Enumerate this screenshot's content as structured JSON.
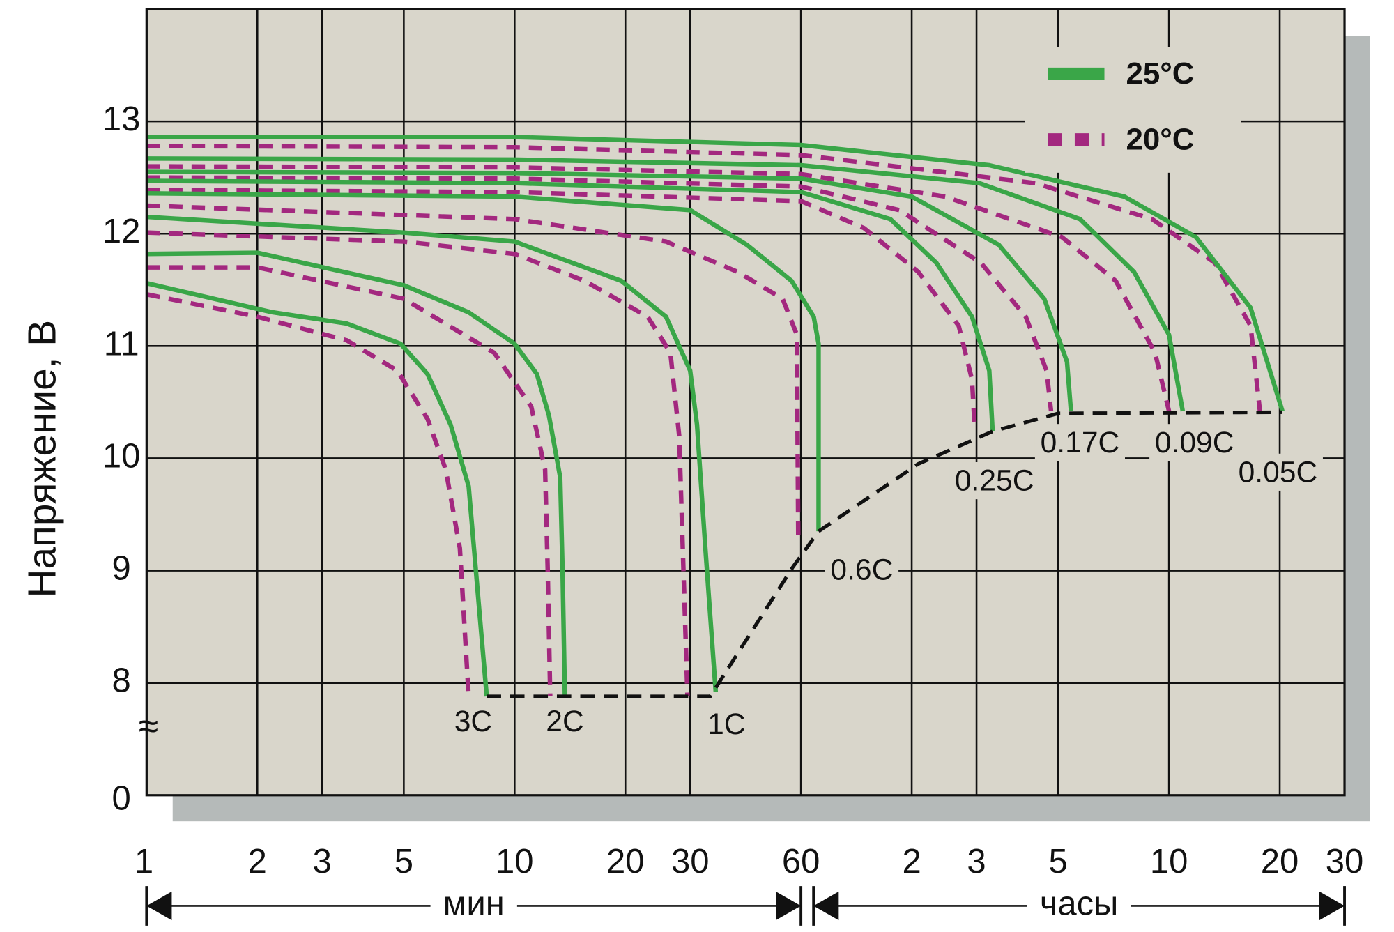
{
  "chart_data": {
    "type": "line",
    "y_label": "Напряжение, В",
    "xscale": "log",
    "xlim": [
      1,
      1800
    ],
    "ylim": [
      7,
      14
    ],
    "xticks": [
      1,
      2,
      3,
      5,
      10,
      20,
      30,
      60,
      {
        "value": 120,
        "label": "2"
      },
      {
        "value": 180,
        "label": "3"
      },
      {
        "value": 300,
        "label": "5"
      },
      {
        "value": 600,
        "label": "10"
      },
      {
        "value": 1200,
        "label": "20"
      },
      {
        "value": 1800,
        "label": "30"
      }
    ],
    "yticks": [
      8,
      9,
      10,
      11,
      12,
      13
    ],
    "y_axis_bottom_label": "0",
    "y_axis_break": "≈",
    "grid": true,
    "x_unit_ranges": [
      {
        "label": "мин",
        "from": 1,
        "to": 60
      },
      {
        "label": "часы",
        "from": 60,
        "to": 1800
      }
    ],
    "series": [
      {
        "name": "25°C",
        "color": "#3aa648",
        "dashed": false,
        "curves": [
          {
            "label": "3C",
            "x": [
              1,
              2.2,
              3.5,
              4.9,
              5.8,
              6.7,
              7.5,
              8.1,
              8.4
            ],
            "y": [
              11.56,
              11.3,
              11.2,
              11.02,
              10.75,
              10.3,
              9.75,
              8.48,
              7.88
            ]
          },
          {
            "label": "2C",
            "x": [
              1,
              2,
              5,
              7.5,
              10,
              11.5,
              12.4,
              13.3,
              13.5,
              13.7
            ],
            "y": [
              11.82,
              11.83,
              11.54,
              11.3,
              11.02,
              10.75,
              10.38,
              9.83,
              9,
              7.88
            ]
          },
          {
            "label": "1C",
            "x": [
              1,
              5,
              10,
              19.5,
              25.8,
              30,
              31.3,
              33,
              35.2
            ],
            "y": [
              12.15,
              12.01,
              11.93,
              11.58,
              11.26,
              10.78,
              10.3,
              9.2,
              7.92
            ]
          },
          {
            "label": "0.6C",
            "x": [
              1,
              10,
              30,
              42.8,
              56.6,
              65,
              67,
              67
            ],
            "y": [
              12.36,
              12.33,
              12.21,
              11.9,
              11.58,
              11.26,
              11.02,
              9.35
            ]
          },
          {
            "label": "0.25C",
            "x": [
              1,
              10,
              60,
              105,
              140,
              175,
              195,
              199
            ],
            "y": [
              12.47,
              12.45,
              12.37,
              12.13,
              11.74,
              11.26,
              10.78,
              10.24
            ]
          },
          {
            "label": "0.17C",
            "x": [
              1,
              10,
              60,
              120,
              207,
              275,
              317,
              325
            ],
            "y": [
              12.55,
              12.54,
              12.49,
              12.33,
              11.9,
              11.42,
              10.86,
              10.42
            ]
          },
          {
            "label": "0.09C",
            "x": [
              1,
              10,
              60,
              183,
              344,
              482,
              600,
              654
            ],
            "y": [
              12.67,
              12.66,
              12.61,
              12.45,
              12.13,
              11.66,
              11.1,
              10.42
            ]
          },
          {
            "label": "0.05C",
            "x": [
              1,
              10,
              60,
              195,
              454,
              710,
              1000,
              1220
            ],
            "y": [
              12.86,
              12.86,
              12.79,
              12.61,
              12.33,
              11.97,
              11.34,
              10.42
            ]
          }
        ]
      },
      {
        "name": "20°C",
        "color": "#a3287f",
        "dashed": true,
        "curves": [
          {
            "x": [
              1,
              2,
              3.5,
              4.8,
              5.8,
              6.5,
              7.1,
              7.5
            ],
            "y": [
              11.46,
              11.26,
              11.05,
              10.78,
              10.35,
              9.9,
              9.2,
              7.88
            ]
          },
          {
            "x": [
              1,
              2,
              5,
              8.8,
              11.1,
              12.1,
              12.3,
              12.5
            ],
            "y": [
              11.7,
              11.7,
              11.42,
              10.94,
              10.46,
              9.9,
              9,
              7.88
            ]
          },
          {
            "x": [
              1,
              5,
              10,
              15.5,
              23,
              26.5,
              28,
              29.5
            ],
            "y": [
              12.01,
              11.93,
              11.82,
              11.58,
              11.26,
              10.94,
              10.2,
              7.88
            ]
          },
          {
            "x": [
              1,
              10,
              25.8,
              40.4,
              53.5,
              58.5,
              59
            ],
            "y": [
              12.25,
              12.13,
              11.93,
              11.66,
              11.42,
              11.1,
              9.27
            ]
          },
          {
            "x": [
              1,
              10,
              60,
              89,
              125,
              161,
              175,
              178
            ],
            "y": [
              12.39,
              12.37,
              12.29,
              12.05,
              11.66,
              11.18,
              10.7,
              10.27
            ]
          },
          {
            "x": [
              1,
              10,
              60,
              111,
              185,
              245,
              279,
              287
            ],
            "y": [
              12.5,
              12.49,
              12.42,
              12.21,
              11.74,
              11.26,
              10.78,
              10.42
            ]
          },
          {
            "x": [
              1,
              10,
              60,
              148,
              307,
              430,
              550,
              600
            ],
            "y": [
              12.6,
              12.59,
              12.53,
              12.33,
              11.97,
              11.58,
              10.94,
              10.42
            ]
          },
          {
            "x": [
              1,
              10,
              60,
              260,
              540,
              800,
              1000,
              1060
            ],
            "y": [
              12.78,
              12.77,
              12.7,
              12.45,
              12.13,
              11.74,
              11.18,
              10.42
            ]
          }
        ]
      }
    ],
    "cutoff_line": {
      "color": "#111111",
      "x": [
        8.4,
        34,
        57,
        67,
        125,
        199,
        300,
        1220
      ],
      "y": [
        7.88,
        7.88,
        9.03,
        9.35,
        9.95,
        10.24,
        10.4,
        10.41
      ]
    }
  }
}
